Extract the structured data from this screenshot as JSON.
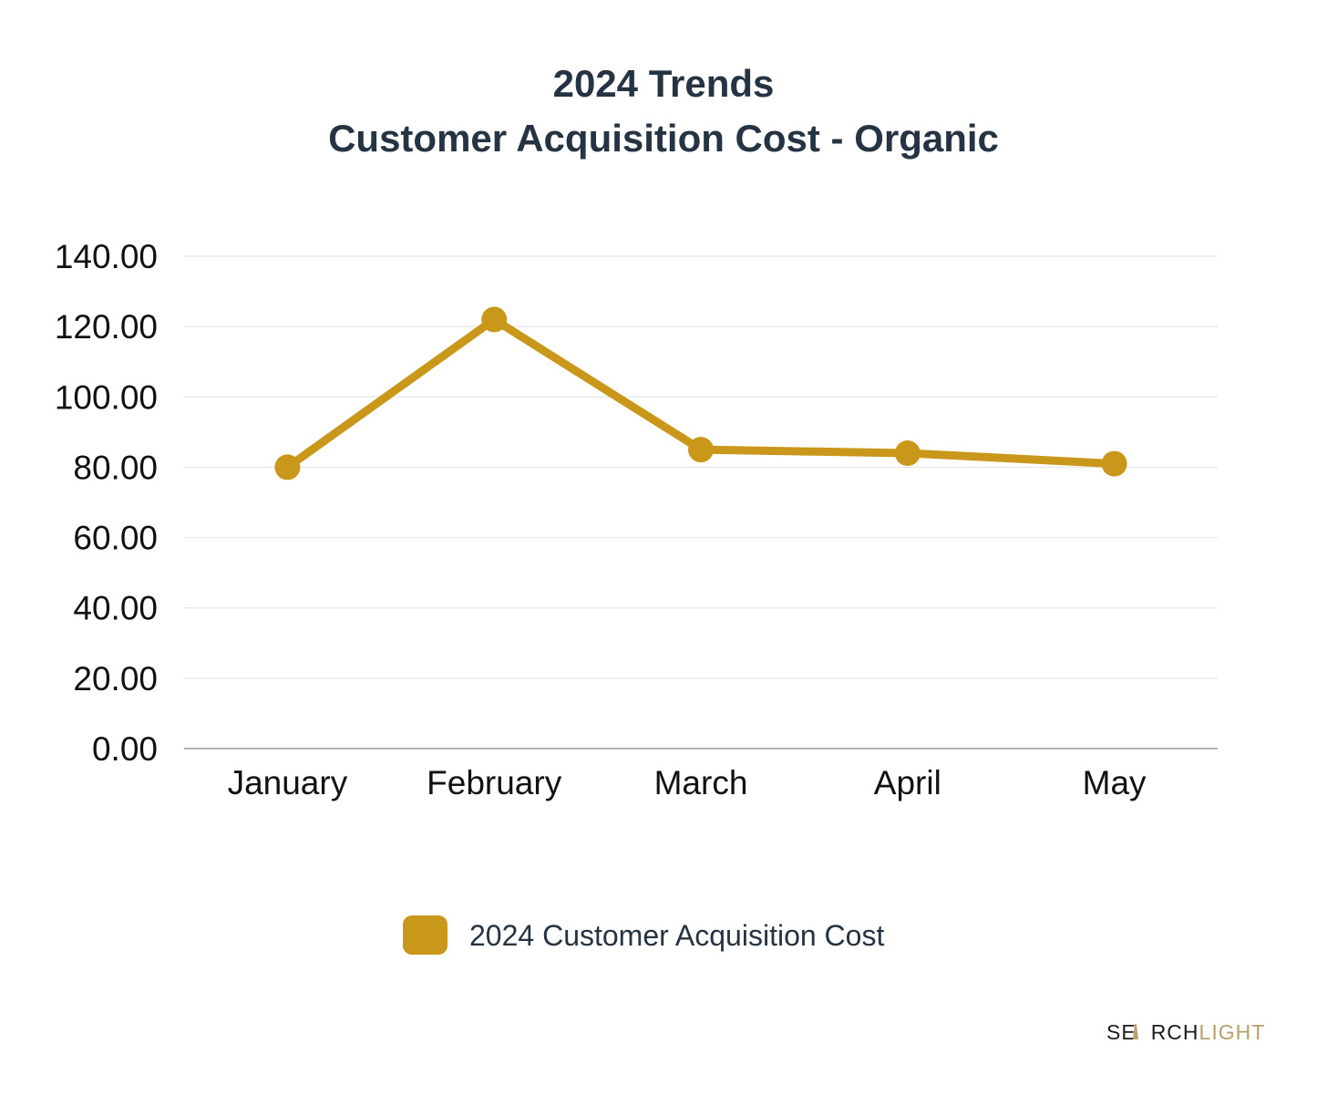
{
  "colors": {
    "series": "#C9981A",
    "title": "#253342",
    "grid": "#e6e6e6",
    "axis": "#9a9a9a",
    "brand_dark": "#1c1c1c",
    "brand_light": "#b8a06a"
  },
  "chart_data": {
    "type": "line",
    "title_lines": [
      "2024 Trends",
      "Customer Acquisition Cost - Organic"
    ],
    "categories": [
      "January",
      "February",
      "March",
      "April",
      "May"
    ],
    "series": [
      {
        "name": "2024 Customer Acquisition Cost",
        "values": [
          80.0,
          122.0,
          85.0,
          84.0,
          81.0
        ]
      }
    ],
    "y_ticks": [
      "0.00",
      "20.00",
      "40.00",
      "60.00",
      "80.00",
      "100.00",
      "120.00",
      "140.00"
    ],
    "ylim": [
      0,
      140
    ],
    "grid": true,
    "legend_position": "bottom-center",
    "xlabel": "",
    "ylabel": ""
  },
  "brand": {
    "dark_part_1": "SE",
    "dark_part_2": "RCH",
    "light_part": "LIGHT"
  }
}
